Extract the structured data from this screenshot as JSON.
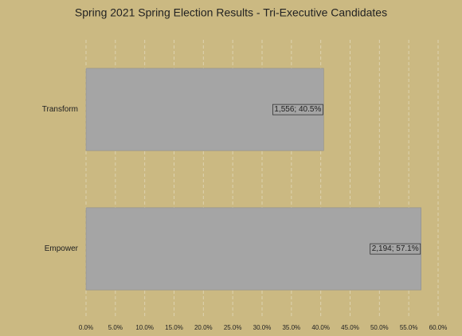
{
  "chart_data": {
    "type": "bar",
    "orientation": "horizontal",
    "title": "Spring 2021 Spring Election Results - Tri-Executive Candidates",
    "categories": [
      "Transform",
      "Empower"
    ],
    "values": [
      40.5,
      57.1
    ],
    "value_labels": [
      "1,556; 40.5%",
      "2,194; 57.1%"
    ],
    "color": "#a5a5a5",
    "xlim": [
      0,
      60
    ],
    "xticks": [
      {
        "value": 0,
        "label": "0.0%"
      },
      {
        "value": 5,
        "label": "5.0%"
      },
      {
        "value": 10,
        "label": "10.0%"
      },
      {
        "value": 15,
        "label": "15.0%"
      },
      {
        "value": 20,
        "label": "20.0%"
      },
      {
        "value": 25,
        "label": "25.0%"
      },
      {
        "value": 30,
        "label": "30.0%"
      },
      {
        "value": 35,
        "label": "35.0%"
      },
      {
        "value": 40,
        "label": "40.0%"
      },
      {
        "value": 45,
        "label": "45.0%"
      },
      {
        "value": 50,
        "label": "50.0%"
      },
      {
        "value": 55,
        "label": "55.0%"
      },
      {
        "value": 60,
        "label": "60.0%"
      }
    ],
    "grid": true
  }
}
